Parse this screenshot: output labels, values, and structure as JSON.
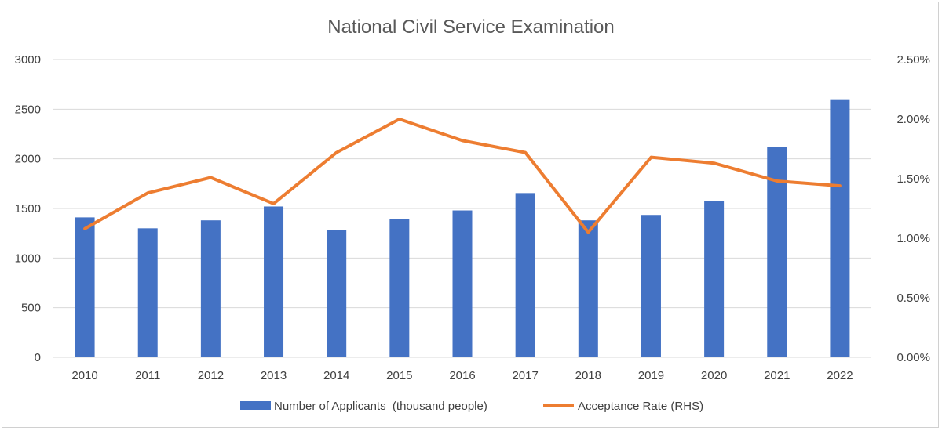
{
  "chart_data": {
    "type": "bar",
    "title": "National Civil Service Examination",
    "categories": [
      "2010",
      "2011",
      "2012",
      "2013",
      "2014",
      "2015",
      "2016",
      "2017",
      "2018",
      "2019",
      "2020",
      "2021",
      "2022"
    ],
    "series": [
      {
        "name": "Number of Applicants  (thousand people)",
        "type": "bar",
        "axis": "left",
        "color": "#4472C4",
        "values": [
          1410,
          1300,
          1380,
          1520,
          1285,
          1395,
          1480,
          1655,
          1380,
          1435,
          1575,
          2120,
          2600
        ]
      },
      {
        "name": "Acceptance Rate (RHS)",
        "type": "line",
        "axis": "right",
        "color": "#ED7D31",
        "values": [
          1.08,
          1.38,
          1.51,
          1.29,
          1.72,
          2.0,
          1.82,
          1.72,
          1.05,
          1.68,
          1.63,
          1.48,
          1.44
        ]
      }
    ],
    "y_left": {
      "min": 0,
      "max": 3000,
      "ticks": [
        "0",
        "500",
        "1000",
        "1500",
        "2000",
        "2500",
        "3000"
      ]
    },
    "y_right": {
      "min": 0,
      "max": 2.5,
      "ticks": [
        "0.00%",
        "0.50%",
        "1.00%",
        "1.50%",
        "2.00%",
        "2.50%"
      ]
    },
    "grid": true,
    "legend_position": "bottom"
  }
}
